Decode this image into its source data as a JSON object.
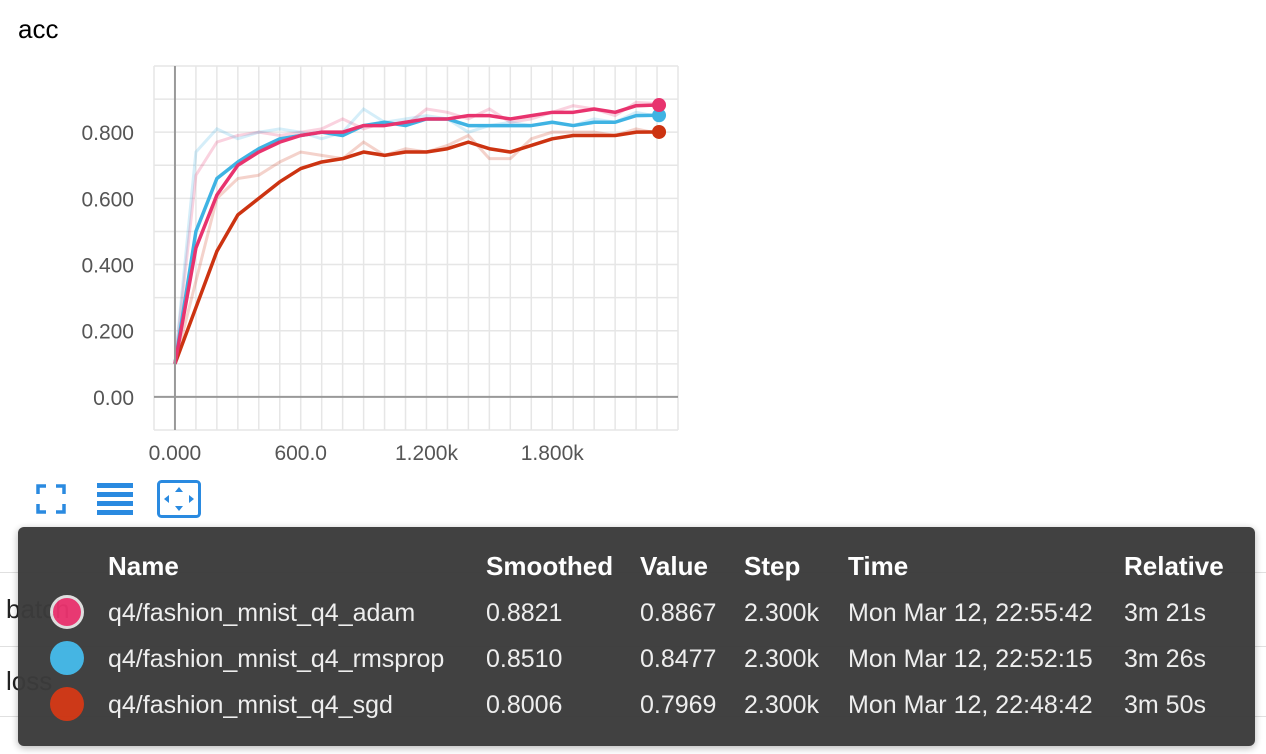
{
  "chart": {
    "title": "acc",
    "colors": {
      "adam": "#e8336e",
      "rmsprop": "#3fb3e3",
      "sgd": "#cc3311"
    }
  },
  "chart_data": {
    "type": "line",
    "title": "acc",
    "xlabel": "",
    "ylabel": "",
    "xlim": [
      -100,
      2400
    ],
    "ylim": [
      -0.1,
      1.0
    ],
    "x_ticks": [
      "0.000",
      "600.0",
      "1.200k",
      "1.800k"
    ],
    "y_ticks": [
      "0.00",
      "0.200",
      "0.400",
      "0.600",
      "0.800"
    ],
    "grid": true,
    "series": [
      {
        "name": "q4/fashion_mnist_q4_adam",
        "color": "#e8336e",
        "x": [
          0,
          100,
          200,
          300,
          400,
          500,
          600,
          700,
          800,
          900,
          1000,
          1100,
          1200,
          1300,
          1400,
          1500,
          1600,
          1700,
          1800,
          1900,
          2000,
          2100,
          2200,
          2300
        ],
        "smoothed": [
          0.1,
          0.45,
          0.61,
          0.7,
          0.74,
          0.77,
          0.79,
          0.8,
          0.8,
          0.82,
          0.82,
          0.83,
          0.84,
          0.84,
          0.85,
          0.85,
          0.84,
          0.85,
          0.86,
          0.86,
          0.87,
          0.86,
          0.88,
          0.8821
        ],
        "raw": [
          0.1,
          0.67,
          0.77,
          0.79,
          0.8,
          0.79,
          0.8,
          0.81,
          0.84,
          0.81,
          0.83,
          0.82,
          0.87,
          0.86,
          0.84,
          0.87,
          0.83,
          0.84,
          0.86,
          0.88,
          0.87,
          0.85,
          0.89,
          0.8867
        ]
      },
      {
        "name": "q4/fashion_mnist_q4_rmsprop",
        "color": "#3fb3e3",
        "x": [
          0,
          100,
          200,
          300,
          400,
          500,
          600,
          700,
          800,
          900,
          1000,
          1100,
          1200,
          1300,
          1400,
          1500,
          1600,
          1700,
          1800,
          1900,
          2000,
          2100,
          2200,
          2300
        ],
        "smoothed": [
          0.1,
          0.5,
          0.66,
          0.71,
          0.75,
          0.78,
          0.79,
          0.8,
          0.79,
          0.82,
          0.83,
          0.82,
          0.84,
          0.84,
          0.82,
          0.82,
          0.82,
          0.82,
          0.83,
          0.82,
          0.83,
          0.83,
          0.85,
          0.851
        ],
        "raw": [
          0.1,
          0.74,
          0.81,
          0.78,
          0.8,
          0.81,
          0.8,
          0.78,
          0.8,
          0.87,
          0.83,
          0.84,
          0.85,
          0.84,
          0.8,
          0.82,
          0.83,
          0.82,
          0.83,
          0.82,
          0.84,
          0.83,
          0.86,
          0.8477
        ]
      },
      {
        "name": "q4/fashion_mnist_q4_sgd",
        "color": "#cc3311",
        "x": [
          0,
          100,
          200,
          300,
          400,
          500,
          600,
          700,
          800,
          900,
          1000,
          1100,
          1200,
          1300,
          1400,
          1500,
          1600,
          1700,
          1800,
          1900,
          2000,
          2100,
          2200,
          2300
        ],
        "smoothed": [
          0.1,
          0.27,
          0.44,
          0.55,
          0.6,
          0.65,
          0.69,
          0.71,
          0.72,
          0.74,
          0.73,
          0.74,
          0.74,
          0.75,
          0.77,
          0.75,
          0.74,
          0.76,
          0.78,
          0.79,
          0.79,
          0.79,
          0.8,
          0.8006
        ],
        "raw": [
          0.1,
          0.35,
          0.6,
          0.66,
          0.67,
          0.71,
          0.74,
          0.73,
          0.72,
          0.77,
          0.73,
          0.75,
          0.74,
          0.76,
          0.79,
          0.72,
          0.72,
          0.78,
          0.8,
          0.8,
          0.8,
          0.79,
          0.81,
          0.7969
        ]
      }
    ]
  },
  "toolbar": {
    "fullscreen_icon": "fullscreen-icon",
    "list_icon": "list-icon",
    "fit_icon": "fit-domain-icon"
  },
  "background_rows": [
    {
      "label": "batch"
    },
    {
      "label": "loss"
    }
  ],
  "tooltip": {
    "headers": {
      "name": "Name",
      "smoothed": "Smoothed",
      "value": "Value",
      "step": "Step",
      "time": "Time",
      "relative": "Relative"
    },
    "rows": [
      {
        "color": "#e8336e",
        "name": "q4/fashion_mnist_q4_adam",
        "smoothed": "0.8821",
        "value": "0.8867",
        "step": "2.300k",
        "time": "Mon Mar 12, 22:55:42",
        "relative": "3m 21s"
      },
      {
        "color": "#3fb3e3",
        "name": "q4/fashion_mnist_q4_rmsprop",
        "smoothed": "0.8510",
        "value": "0.8477",
        "step": "2.300k",
        "time": "Mon Mar 12, 22:52:15",
        "relative": "3m 26s"
      },
      {
        "color": "#cc3311",
        "name": "q4/fashion_mnist_q4_sgd",
        "smoothed": "0.8006",
        "value": "0.7969",
        "step": "2.300k",
        "time": "Mon Mar 12, 22:48:42",
        "relative": "3m 50s"
      }
    ]
  }
}
